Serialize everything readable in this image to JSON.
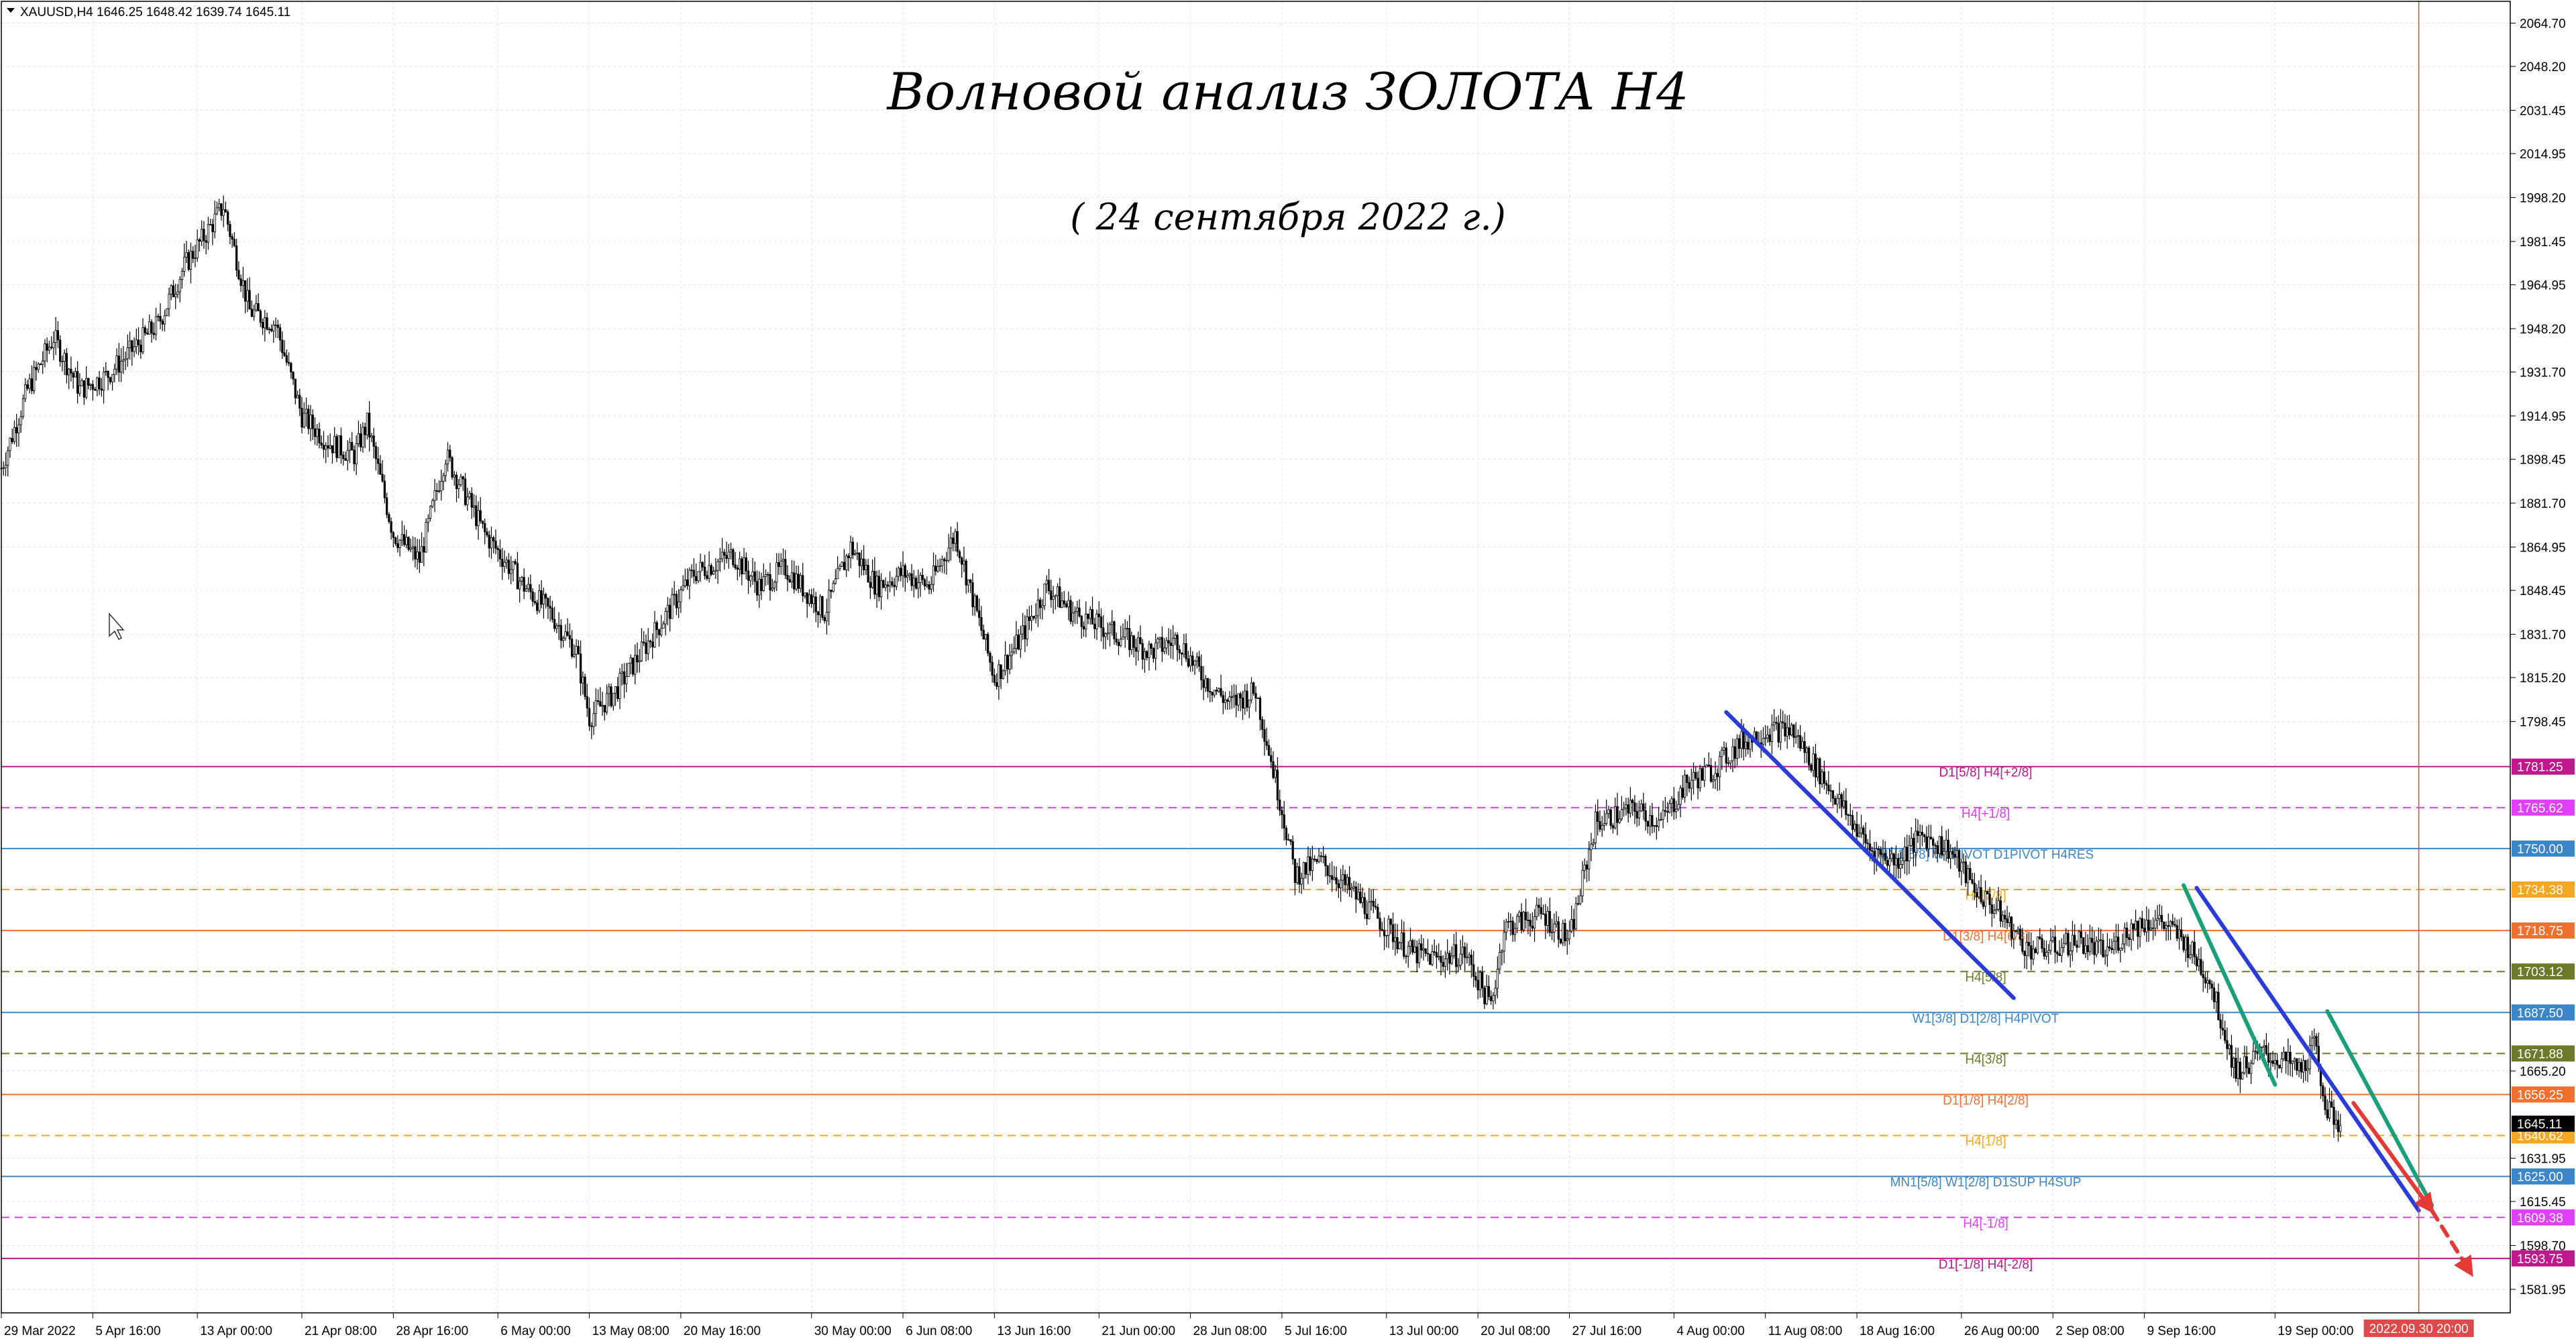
{
  "symbol_info": "XAUUSD,H4  1646.25 1648.42 1639.74 1645.11",
  "title": "Волновой анализ ЗОЛОТА H4",
  "subtitle": "( 24 сентября 2022 г.)",
  "chart_data": {
    "type": "candlestick",
    "symbol": "XAUUSD",
    "timeframe": "H4",
    "ohlc_last": {
      "open": 1646.25,
      "high": 1648.42,
      "low": 1639.74,
      "close": 1645.11
    },
    "ylim": [
      1573,
      2073
    ],
    "xlim": [
      "2022-03-29",
      "2022-10-07"
    ],
    "yticks": [
      "2064.70",
      "2048.20",
      "2031.45",
      "2014.95",
      "1998.20",
      "1981.45",
      "1964.95",
      "1948.20",
      "1931.70",
      "1914.95",
      "1898.45",
      "1881.70",
      "1864.95",
      "1848.45",
      "1831.70",
      "1815.20",
      "1798.45",
      "1665.20",
      "1631.95",
      "1615.45",
      "1598.70",
      "1581.95"
    ],
    "xticks": [
      {
        "label": "29 Mar 2022",
        "date": "2022-03-29"
      },
      {
        "label": "5 Apr 16:00",
        "date": "2022-04-05"
      },
      {
        "label": "13 Apr 00:00",
        "date": "2022-04-13"
      },
      {
        "label": "21 Apr 08:00",
        "date": "2022-04-21"
      },
      {
        "label": "28 Apr 16:00",
        "date": "2022-04-28"
      },
      {
        "label": "6 May 00:00",
        "date": "2022-05-06"
      },
      {
        "label": "13 May 08:00",
        "date": "2022-05-13"
      },
      {
        "label": "20 May 16:00",
        "date": "2022-05-20"
      },
      {
        "label": "30 May 00:00",
        "date": "2022-05-30"
      },
      {
        "label": "6 Jun 08:00",
        "date": "2022-06-06"
      },
      {
        "label": "13 Jun 16:00",
        "date": "2022-06-13"
      },
      {
        "label": "21 Jun 00:00",
        "date": "2022-06-21"
      },
      {
        "label": "28 Jun 08:00",
        "date": "2022-06-28"
      },
      {
        "label": "5 Jul 16:00",
        "date": "2022-07-05"
      },
      {
        "label": "13 Jul 00:00",
        "date": "2022-07-13"
      },
      {
        "label": "20 Jul 08:00",
        "date": "2022-07-20"
      },
      {
        "label": "27 Jul 16:00",
        "date": "2022-07-27"
      },
      {
        "label": "4 Aug 00:00",
        "date": "2022-08-04"
      },
      {
        "label": "11 Aug 08:00",
        "date": "2022-08-11"
      },
      {
        "label": "18 Aug 16:00",
        "date": "2022-08-18"
      },
      {
        "label": "26 Aug 00:00",
        "date": "2022-08-26"
      },
      {
        "label": "2 Sep 08:00",
        "date": "2022-09-02"
      },
      {
        "label": "9 Sep 16:00",
        "date": "2022-09-09"
      },
      {
        "label": "19 Sep 00:00",
        "date": "2022-09-19"
      }
    ],
    "vline": {
      "label": "2022.09.30 20:00",
      "date": "2022-09-30",
      "color": "#e0494a"
    },
    "price_path": [
      [
        "2022-03-29",
        1895
      ],
      [
        "2022-03-31",
        1925
      ],
      [
        "2022-04-02",
        1945
      ],
      [
        "2022-04-04",
        1925
      ],
      [
        "2022-04-06",
        1930
      ],
      [
        "2022-04-08",
        1940
      ],
      [
        "2022-04-10",
        1950
      ],
      [
        "2022-04-12",
        1972
      ],
      [
        "2022-04-14",
        1987
      ],
      [
        "2022-04-15",
        1995
      ],
      [
        "2022-04-17",
        1955
      ],
      [
        "2022-04-19",
        1950
      ],
      [
        "2022-04-21",
        1915
      ],
      [
        "2022-04-23",
        1905
      ],
      [
        "2022-04-25",
        1900
      ],
      [
        "2022-04-26",
        1912
      ],
      [
        "2022-04-28",
        1870
      ],
      [
        "2022-04-30",
        1860
      ],
      [
        "2022-05-02",
        1900
      ],
      [
        "2022-05-04",
        1880
      ],
      [
        "2022-05-05",
        1870
      ],
      [
        "2022-05-08",
        1850
      ],
      [
        "2022-05-10",
        1840
      ],
      [
        "2022-05-12",
        1825
      ],
      [
        "2022-05-13",
        1800
      ],
      [
        "2022-05-15",
        1810
      ],
      [
        "2022-05-17",
        1825
      ],
      [
        "2022-05-19",
        1840
      ],
      [
        "2022-05-21",
        1855
      ],
      [
        "2022-05-24",
        1862
      ],
      [
        "2022-05-26",
        1850
      ],
      [
        "2022-05-28",
        1857
      ],
      [
        "2022-05-31",
        1840
      ],
      [
        "2022-06-02",
        1865
      ],
      [
        "2022-06-04",
        1850
      ],
      [
        "2022-06-06",
        1855
      ],
      [
        "2022-06-08",
        1850
      ],
      [
        "2022-06-10",
        1870
      ],
      [
        "2022-06-13",
        1815
      ],
      [
        "2022-06-15",
        1830
      ],
      [
        "2022-06-17",
        1850
      ],
      [
        "2022-06-19",
        1840
      ],
      [
        "2022-06-21",
        1835
      ],
      [
        "2022-06-23",
        1830
      ],
      [
        "2022-06-25",
        1825
      ],
      [
        "2022-06-27",
        1830
      ],
      [
        "2022-06-29",
        1815
      ],
      [
        "2022-07-01",
        1805
      ],
      [
        "2022-07-03",
        1810
      ],
      [
        "2022-07-05",
        1765
      ],
      [
        "2022-07-06",
        1740
      ],
      [
        "2022-07-08",
        1745
      ],
      [
        "2022-07-11",
        1730
      ],
      [
        "2022-07-13",
        1720
      ],
      [
        "2022-07-15",
        1710
      ],
      [
        "2022-07-17",
        1708
      ],
      [
        "2022-07-19",
        1710
      ],
      [
        "2022-07-21",
        1690
      ],
      [
        "2022-07-22",
        1720
      ],
      [
        "2022-07-25",
        1725
      ],
      [
        "2022-07-27",
        1715
      ],
      [
        "2022-07-29",
        1760
      ],
      [
        "2022-08-01",
        1765
      ],
      [
        "2022-08-03",
        1760
      ],
      [
        "2022-08-05",
        1775
      ],
      [
        "2022-08-07",
        1780
      ],
      [
        "2022-08-09",
        1790
      ],
      [
        "2022-08-11",
        1795
      ],
      [
        "2022-08-13",
        1795
      ],
      [
        "2022-08-15",
        1780
      ],
      [
        "2022-08-17",
        1765
      ],
      [
        "2022-08-19",
        1750
      ],
      [
        "2022-08-21",
        1745
      ],
      [
        "2022-08-23",
        1755
      ],
      [
        "2022-08-25",
        1750
      ],
      [
        "2022-08-27",
        1735
      ],
      [
        "2022-08-29",
        1725
      ],
      [
        "2022-08-31",
        1712
      ],
      [
        "2022-09-02",
        1712
      ],
      [
        "2022-09-04",
        1715
      ],
      [
        "2022-09-06",
        1710
      ],
      [
        "2022-09-08",
        1720
      ],
      [
        "2022-09-10",
        1723
      ],
      [
        "2022-09-12",
        1715
      ],
      [
        "2022-09-14",
        1700
      ],
      [
        "2022-09-16",
        1665
      ],
      [
        "2022-09-18",
        1672
      ],
      [
        "2022-09-20",
        1668
      ],
      [
        "2022-09-21",
        1665
      ],
      [
        "2022-09-22",
        1675
      ],
      [
        "2022-09-23",
        1650
      ],
      [
        "2022-09-24",
        1645
      ]
    ],
    "levels": [
      {
        "value": 1781.25,
        "tag": "1781.25",
        "label": "D1[5/8] H4[+2/8]",
        "color": "#c0178c",
        "dash": false
      },
      {
        "value": 1765.62,
        "tag": "1765.62",
        "label": "H4[+1/8]",
        "color": "#e040fb",
        "dash": true
      },
      {
        "value": 1750.0,
        "tag": "1750.00",
        "label": "MN1[6/8] W1PIVOT D1PIVOT H4RES",
        "color": "#3a86c8",
        "dash": false
      },
      {
        "value": 1734.38,
        "tag": "1734.38",
        "label": "H4[7/8]",
        "color": "#f5a623",
        "dash": true
      },
      {
        "value": 1718.75,
        "tag": "1718.75",
        "label": "D1[3/8] H4[6/8]",
        "color": "#f07030",
        "dash": false
      },
      {
        "value": 1703.12,
        "tag": "1703.12",
        "label": "H4[5/8]",
        "color": "#6b7a2a",
        "dash": true
      },
      {
        "value": 1687.5,
        "tag": "1687.50",
        "label": "W1[3/8] D1[2/8] H4PIVOT",
        "color": "#3a86c8",
        "dash": false
      },
      {
        "value": 1671.88,
        "tag": "1671.88",
        "label": "H4[3/8]",
        "color": "#6b7a2a",
        "dash": true
      },
      {
        "value": 1656.25,
        "tag": "1656.25",
        "label": "D1[1/8] H4[2/8]",
        "color": "#f07030",
        "dash": false
      },
      {
        "value": 1640.62,
        "tag": "1640.62",
        "label": "H4[1/8]",
        "color": "#f5a623",
        "dash": true
      },
      {
        "value": 1625.0,
        "tag": "1625.00",
        "label": "MN1[5/8] W1[2/8] D1SUP H4SUP",
        "color": "#3a86c8",
        "dash": false
      },
      {
        "value": 1609.38,
        "tag": "1609.38",
        "label": "H4[-1/8]",
        "color": "#e040fb",
        "dash": true
      },
      {
        "value": 1593.75,
        "tag": "1593.75",
        "label": "D1[-1/8] H4[-2/8]",
        "color": "#c0178c",
        "dash": false
      }
    ],
    "current_price": {
      "value": 1645.11,
      "tag": "1645.11"
    },
    "trendlines": [
      {
        "color": "#2a3bd9",
        "from": [
          "2022-08-08",
          1802
        ],
        "to": [
          "2022-08-30",
          1693
        ]
      },
      {
        "color": "#2a3bd9",
        "from": [
          "2022-09-13",
          1735
        ],
        "to": [
          "2022-09-30",
          1612
        ]
      },
      {
        "color": "#19a07a",
        "from": [
          "2022-09-12",
          1736
        ],
        "to": [
          "2022-09-19",
          1660
        ]
      },
      {
        "color": "#19a07a",
        "from": [
          "2022-09-23",
          1688
        ],
        "to": [
          "2022-10-01",
          1614
        ]
      },
      {
        "color": "#e53935",
        "from": [
          "2022-09-25",
          1653
        ],
        "to": [
          "2022-10-01",
          1612
        ],
        "arrow": true
      },
      {
        "color": "#e53935",
        "from": [
          "2022-10-01",
          1612
        ],
        "to": [
          "2022-10-04",
          1588
        ],
        "dash": true,
        "arrow": true
      }
    ]
  }
}
